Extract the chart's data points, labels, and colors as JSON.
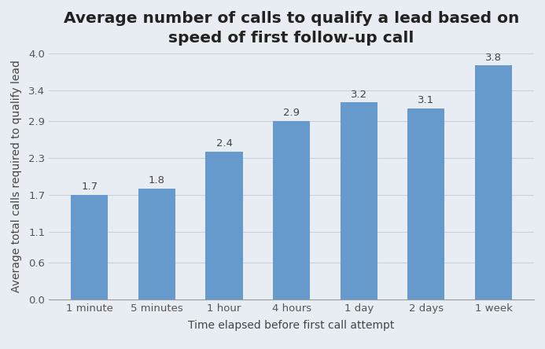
{
  "categories": [
    "1 minute",
    "5 minutes",
    "1 hour",
    "4 hours",
    "1 day",
    "2 days",
    "1 week"
  ],
  "values": [
    1.7,
    1.8,
    2.4,
    2.9,
    3.2,
    3.1,
    3.8
  ],
  "bar_color": "#6699cc",
  "title_line1": "Average number of calls to qualify a lead based on",
  "title_line2": "speed of first follow-up call",
  "xlabel": "Time elapsed before first call attempt",
  "ylabel": "Average total calls required to qualify lead",
  "ylim": [
    0,
    4.0
  ],
  "yticks": [
    0.0,
    0.6,
    1.1,
    1.7,
    2.3,
    2.9,
    3.4,
    4.0
  ],
  "background_color": "#e8edf4",
  "grid_color": "#c8d0dc",
  "title_fontsize": 14.5,
  "axis_label_fontsize": 10,
  "tick_fontsize": 9.5,
  "bar_label_fontsize": 9.5,
  "bar_width": 0.55
}
